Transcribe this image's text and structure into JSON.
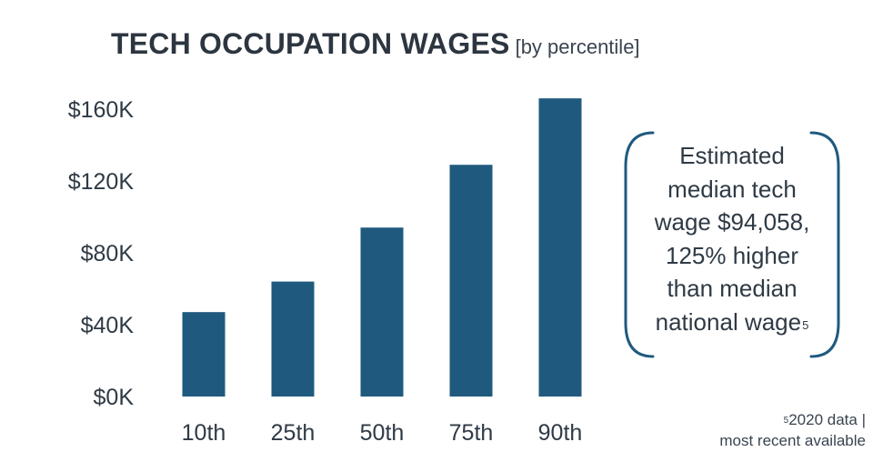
{
  "chart_data": {
    "type": "bar",
    "title": "TECH OCCUPATION WAGES",
    "subtitle": "[by percentile]",
    "categories": [
      "10th",
      "25th",
      "50th",
      "75th",
      "90th"
    ],
    "values": [
      47000,
      64000,
      94058,
      129000,
      166000
    ],
    "y_ticks": [
      0,
      40000,
      80000,
      120000,
      160000
    ],
    "y_tick_labels": [
      "$0K",
      "$40K",
      "$80K",
      "$120K",
      "$160K"
    ],
    "ylim": [
      0,
      170000
    ],
    "xlabel": "",
    "ylabel": "",
    "grid": false,
    "bar_color": "#1f5a7e"
  },
  "callout": {
    "lines": [
      "Estimated",
      "median tech",
      "wage $94,058,",
      "125% higher",
      "than median",
      "national wage"
    ],
    "superscript": "5",
    "bracket_color": "#1f5a7e"
  },
  "footnote": {
    "superscript": "5",
    "line1": "2020 data |",
    "line2": "most recent available"
  }
}
